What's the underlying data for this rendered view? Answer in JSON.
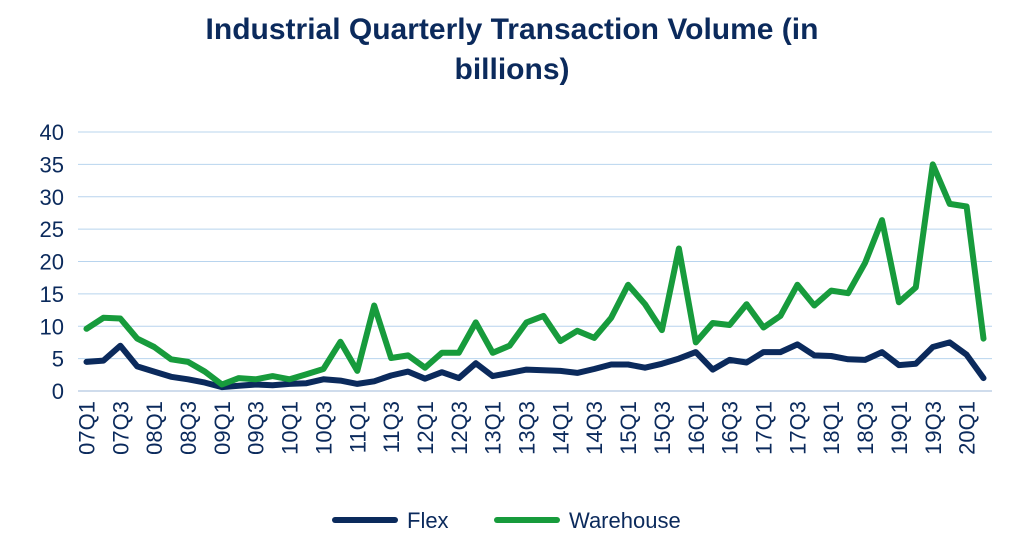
{
  "chart_data": {
    "type": "line",
    "title_line1": "Industrial Quarterly Transaction Volume (in",
    "title_line2": "billions)",
    "ylim": [
      0,
      40
    ],
    "yticks": [
      0,
      5,
      10,
      15,
      20,
      25,
      30,
      35,
      40
    ],
    "grid": true,
    "legend_position": "bottom",
    "x": [
      "07Q1",
      "07Q2",
      "07Q3",
      "07Q4",
      "08Q1",
      "08Q2",
      "08Q3",
      "08Q4",
      "09Q1",
      "09Q2",
      "09Q3",
      "09Q4",
      "10Q1",
      "10Q2",
      "10Q3",
      "10Q4",
      "11Q1",
      "11Q2",
      "11Q3",
      "11Q4",
      "12Q1",
      "12Q2",
      "12Q3",
      "12Q4",
      "13Q1",
      "13Q2",
      "13Q3",
      "13Q4",
      "14Q1",
      "14Q2",
      "14Q3",
      "14Q4",
      "15Q1",
      "15Q2",
      "15Q3",
      "15Q4",
      "16Q1",
      "16Q2",
      "16Q3",
      "16Q4",
      "17Q1",
      "17Q2",
      "17Q3",
      "17Q4",
      "18Q1",
      "18Q2",
      "18Q3",
      "18Q4",
      "19Q1",
      "19Q2",
      "19Q3",
      "19Q4",
      "20Q1",
      "20Q2"
    ],
    "series": [
      {
        "name": "Flex",
        "color": "#0b2a5c",
        "values": [
          4.5,
          4.7,
          7.0,
          3.8,
          3.0,
          2.2,
          1.8,
          1.3,
          0.6,
          0.8,
          1.0,
          0.9,
          1.1,
          1.2,
          1.8,
          1.6,
          1.1,
          1.5,
          2.4,
          3.0,
          1.9,
          2.9,
          2.0,
          4.3,
          2.3,
          2.8,
          3.3,
          3.2,
          3.1,
          2.8,
          3.4,
          4.1,
          4.1,
          3.6,
          4.2,
          5.0,
          6.0,
          3.3,
          4.8,
          4.4,
          6.0,
          6.0,
          7.2,
          5.5,
          5.4,
          4.9,
          4.8,
          6.0,
          4.0,
          4.2,
          6.8,
          7.5,
          5.6,
          2.0
        ]
      },
      {
        "name": "Warehouse",
        "color": "#179b3c",
        "values": [
          9.6,
          11.3,
          11.2,
          8.1,
          6.8,
          4.9,
          4.5,
          3.0,
          1.0,
          2.0,
          1.8,
          2.3,
          1.8,
          2.6,
          3.4,
          7.6,
          3.1,
          13.2,
          5.1,
          5.5,
          3.6,
          5.9,
          5.9,
          10.6,
          5.9,
          7.0,
          10.6,
          11.6,
          7.7,
          9.3,
          8.2,
          11.3,
          16.4,
          13.4,
          9.4,
          22.0,
          7.5,
          10.5,
          10.2,
          13.4,
          9.8,
          11.6,
          16.4,
          13.2,
          15.5,
          15.1,
          19.8,
          26.4,
          13.7,
          16.0,
          35.0,
          28.9,
          28.5,
          8.1
        ]
      }
    ]
  }
}
